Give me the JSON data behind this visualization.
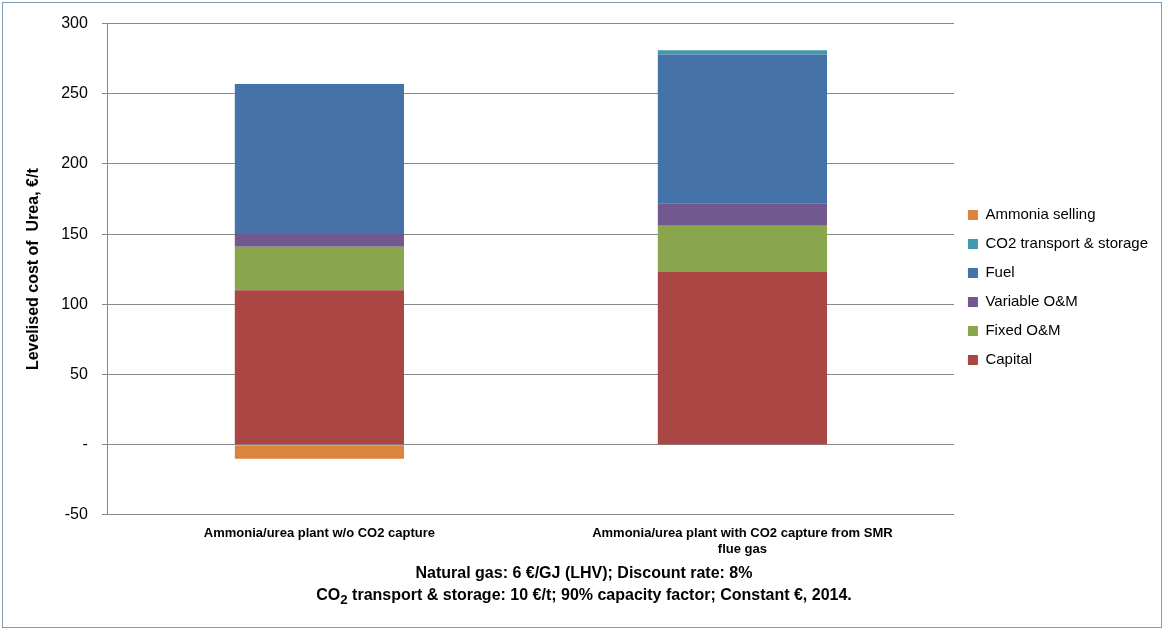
{
  "chart_data": {
    "type": "bar",
    "stacked": true,
    "ylabel": "Levelised cost of  Urea, €/t",
    "categories": [
      "Ammonia/urea plant w/o CO2 capture",
      "Ammonia/urea plant with CO2 capture from SMR flue gas"
    ],
    "series": [
      {
        "name": "Capital",
        "color": "#aa4643",
        "values": [
          110,
          123
        ]
      },
      {
        "name": "Fixed O&M",
        "color": "#89a54e",
        "values": [
          31,
          33
        ]
      },
      {
        "name": "Variable O&M",
        "color": "#71588f",
        "values": [
          9,
          16
        ]
      },
      {
        "name": "Fuel",
        "color": "#4572a7",
        "values": [
          107,
          106
        ]
      },
      {
        "name": "CO2 transport & storage",
        "color": "#4198af",
        "values": [
          0,
          3
        ]
      },
      {
        "name": "Ammonia selling",
        "color": "#db843d",
        "values": [
          -10,
          0
        ]
      }
    ],
    "ylim": [
      -50,
      300
    ],
    "yticks": [
      -50,
      {
        "value": 0,
        "label": "-"
      },
      50,
      100,
      150,
      200,
      250,
      300
    ],
    "grid": "y",
    "legend": "right",
    "annotations": [
      "Natural gas: 6 €/GJ (LHV); Discount rate: 8%",
      "CO$_{2}$ transport & storage: 10 €/t; 90% capacity factor; Constant €, 2014."
    ]
  }
}
